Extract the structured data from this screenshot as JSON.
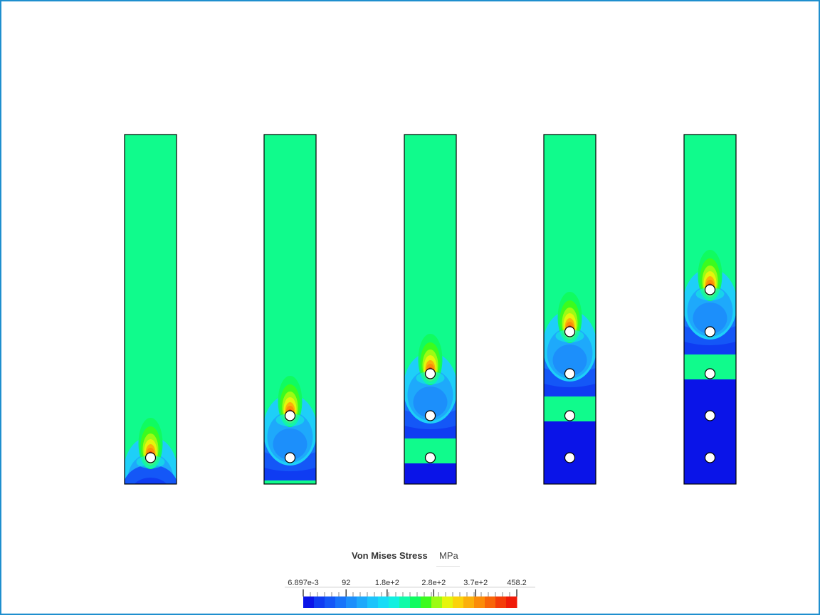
{
  "viewport": {
    "background": "#ffffff",
    "frame_color": "#1f8fce",
    "plates": [
      {
        "index": 1,
        "hole_count": 1,
        "failed_holes": 0
      },
      {
        "index": 2,
        "hole_count": 2,
        "failed_holes": 1
      },
      {
        "index": 3,
        "hole_count": 3,
        "failed_holes": 2
      },
      {
        "index": 4,
        "hole_count": 4,
        "failed_holes": 3
      },
      {
        "index": 5,
        "hole_count": 5,
        "failed_holes": 4
      }
    ]
  },
  "legend": {
    "title": "Von Mises Stress",
    "unit": "MPa",
    "min": 0.006897,
    "max": 458.2,
    "tick_labels": [
      "6.897e-3",
      "92",
      "1.8e+2",
      "2.8e+2",
      "3.7e+2",
      "458.2"
    ],
    "tick_values": [
      0.006897,
      92,
      180,
      280,
      370,
      458.2
    ],
    "colors": [
      "#0a14e8",
      "#0f3cf2",
      "#1457f7",
      "#1874fa",
      "#1c8ffb",
      "#1ea9fb",
      "#1cc4fb",
      "#17dcf6",
      "#12f0e0",
      "#10fba8",
      "#10fb60",
      "#3cfb1e",
      "#9cfb14",
      "#e6f50c",
      "#fbd30a",
      "#fbb00a",
      "#fb8c08",
      "#f86508",
      "#f43c08",
      "#f01a08"
    ]
  }
}
